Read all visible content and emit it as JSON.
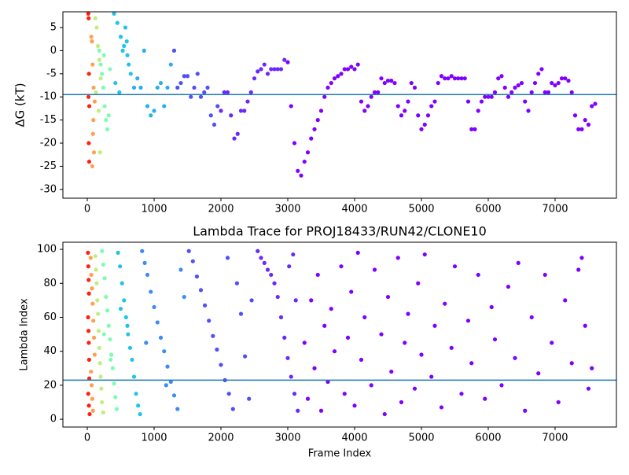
{
  "chart_data": [
    {
      "type": "scatter",
      "ylabel": "ΔG (kT)",
      "xlim": [
        -365,
        7918
      ],
      "ylim": [
        -31.9,
        8.4
      ],
      "xticks": [
        0,
        1000,
        2000,
        3000,
        4000,
        5000,
        6000,
        7000
      ],
      "yticks": [
        -30,
        -25,
        -20,
        -15,
        -10,
        -5,
        0,
        5
      ],
      "hline": -9.5,
      "hline_color": "#1f77b4",
      "series": [
        {
          "color": "#ff2010",
          "x": [
            15,
            20,
            25,
            18,
            22,
            28,
            30
          ],
          "values": [
            8,
            7,
            -5,
            -10,
            -20,
            -24,
            -12
          ]
        },
        {
          "color": "#ffa050",
          "x": [
            60,
            70,
            80,
            90,
            100,
            75,
            85,
            95,
            110
          ],
          "values": [
            3,
            2,
            -3,
            -15,
            -22,
            -25,
            -18,
            -8,
            -11
          ]
        },
        {
          "color": "#c0ee80",
          "x": [
            120,
            140,
            160,
            180,
            200,
            130,
            170,
            190
          ],
          "values": [
            7,
            5,
            1,
            -2,
            -6,
            -9,
            -13,
            -22
          ]
        },
        {
          "color": "#80fcb0",
          "x": [
            180,
            200,
            220,
            240,
            260,
            280,
            300,
            320,
            340,
            250
          ],
          "values": [
            0,
            -3,
            -5,
            -8,
            -12,
            -15,
            -17,
            -14,
            -4,
            -1
          ]
        },
        {
          "color": "#20c4e8",
          "x": [
            400,
            450,
            500,
            550,
            600,
            620,
            650,
            420,
            480,
            530,
            570,
            590
          ],
          "values": [
            8,
            6,
            3,
            1,
            -1,
            -3,
            -5,
            -7,
            -9,
            0,
            5,
            2
          ]
        },
        {
          "color": "#28b0ec",
          "x": [
            700,
            750,
            800,
            850,
            900,
            950,
            1000,
            1050,
            1100,
            1150,
            1200,
            1250
          ],
          "values": [
            -8,
            -6,
            -8,
            0,
            -12,
            -14,
            -13,
            -8,
            -7,
            -12,
            -8,
            -3
          ]
        },
        {
          "color": "#5050f8",
          "x": [
            1300,
            1350,
            1400,
            1450,
            1500,
            1550,
            1600,
            1650,
            1700,
            1750,
            1800,
            1850,
            1900,
            1950
          ],
          "values": [
            0,
            -8,
            -7,
            -5.5,
            -5.5,
            -10,
            -8,
            -5,
            -10,
            -9,
            -8,
            -14,
            -16,
            -12
          ]
        },
        {
          "color": "#6a28fc",
          "x": [
            2000,
            2050,
            2100,
            2150,
            2200,
            2250,
            2300,
            2350,
            2400,
            2450,
            2500,
            2550,
            2600,
            2650,
            2700,
            2750,
            2800,
            2850,
            2900,
            2950
          ],
          "values": [
            -13,
            -9,
            -9,
            -14,
            -19,
            -18,
            -13,
            -13,
            -11,
            -9,
            -6,
            -4.5,
            -4,
            -3,
            -5,
            -4,
            -4,
            -4,
            -4,
            -2
          ]
        },
        {
          "color": "#8000ff",
          "x": [
            3000,
            3050,
            3100,
            3150,
            3200,
            3250,
            3300,
            3350,
            3400,
            3450,
            3500,
            3550,
            3600,
            3650,
            3700,
            3750,
            3800,
            3850,
            3900,
            3950,
            4000,
            4050,
            4100,
            4150,
            4200,
            4250,
            4300,
            4350,
            4400,
            4450,
            4500,
            4550,
            4600,
            4650,
            4700,
            4750,
            4800,
            4850,
            4900,
            4950,
            5000,
            5050,
            5100,
            5150,
            5200,
            5250,
            5300,
            5350,
            5400,
            5450,
            5500,
            5550,
            5600,
            5650,
            5700,
            5750,
            5800,
            5850,
            5900,
            5950,
            6000,
            6050,
            6100,
            6150,
            6200,
            6250,
            6300,
            6350,
            6400,
            6450,
            6500,
            6550,
            6600,
            6650,
            6700,
            6750,
            6800,
            6850,
            6900,
            6950,
            7000,
            7050,
            7100,
            7150,
            7200,
            7250,
            7300,
            7350,
            7400,
            7450,
            7500,
            7550,
            7600
          ],
          "values": [
            -2.5,
            -12,
            -20,
            -26,
            -27,
            -24,
            -22,
            -19,
            -17,
            -15,
            -13,
            -10,
            -8,
            -7,
            -6,
            -5.5,
            -5,
            -4,
            -4,
            -3.5,
            -4,
            -3,
            -11,
            -13,
            -12,
            -10,
            -9,
            -9,
            -6,
            -7,
            -6.5,
            -6.5,
            -7,
            -12,
            -14,
            -13,
            -11,
            -7,
            -8,
            -14,
            -17,
            -16,
            -14,
            -12,
            -11,
            -7,
            -5.5,
            -6,
            -6,
            -5.5,
            -6,
            -6,
            -6,
            -6,
            -11,
            -17,
            -17,
            -13,
            -11,
            -10,
            -10,
            -10,
            -9,
            -6,
            -5.5,
            -8,
            -10,
            -9,
            -8,
            -7.5,
            -7,
            -11,
            -13,
            -9,
            -7,
            -5,
            -4,
            -9,
            -9,
            -7,
            -7.5,
            -7,
            -6,
            -6,
            -6.5,
            -9,
            -14,
            -17,
            -17,
            -15,
            -16,
            -12,
            -11.5
          ]
        }
      ]
    },
    {
      "type": "scatter",
      "title": "Lambda Trace for PROJ18433/RUN42/CLONE10",
      "xlabel": "Frame Index",
      "ylabel": "Lambda Index",
      "xlim": [
        -365,
        7918
      ],
      "ylim": [
        -4.6,
        104.2
      ],
      "xticks": [
        0,
        1000,
        2000,
        3000,
        4000,
        5000,
        6000,
        7000
      ],
      "yticks": [
        0,
        20,
        40,
        60,
        80,
        100
      ],
      "hline": 23,
      "hline_color": "#1f77b4",
      "series": [
        {
          "color": "#ff2010",
          "x": [
            10,
            15,
            20,
            25,
            12,
            18,
            22,
            28,
            30,
            14,
            24,
            35
          ],
          "values": [
            98,
            90,
            82,
            74,
            60,
            52,
            45,
            35,
            24,
            15,
            8,
            3
          ]
        },
        {
          "color": "#ffa050",
          "x": [
            50,
            60,
            70,
            80,
            90,
            100,
            110,
            55,
            65,
            75,
            85
          ],
          "values": [
            95,
            85,
            77,
            68,
            58,
            48,
            38,
            28,
            20,
            12,
            5
          ]
        },
        {
          "color": "#c0ee80",
          "x": [
            120,
            130,
            140,
            150,
            160,
            170,
            180,
            190,
            200,
            210,
            220,
            240
          ],
          "values": [
            96,
            88,
            80,
            70,
            62,
            52,
            42,
            33,
            25,
            18,
            10,
            4
          ]
        },
        {
          "color": "#80fcb0",
          "x": [
            220,
            240,
            260,
            280,
            300,
            320,
            340,
            360,
            380,
            400,
            420,
            440,
            250,
            350
          ],
          "values": [
            99,
            91,
            83,
            72,
            64,
            55,
            47,
            38,
            30,
            21,
            13,
            6,
            50,
            35
          ]
        },
        {
          "color": "#20c4e8",
          "x": [
            460,
            490,
            520,
            550,
            580,
            610,
            640,
            670,
            700,
            730,
            760,
            790,
            500,
            600
          ],
          "values": [
            98,
            90,
            80,
            70,
            60,
            50,
            42,
            35,
            25,
            15,
            8,
            3,
            65,
            55
          ]
        },
        {
          "color": "#3c8cf6",
          "x": [
            820,
            860,
            900,
            950,
            1000,
            1050,
            1100,
            1150,
            1200,
            1250,
            1300,
            1350,
            1400,
            1450,
            880,
            1180
          ],
          "values": [
            99,
            92,
            85,
            75,
            66,
            57,
            48,
            40,
            31,
            22,
            14,
            6,
            88,
            72,
            45,
            20
          ]
        },
        {
          "color": "#5050f8",
          "x": [
            1520,
            1580,
            1640,
            1700,
            1760,
            1820,
            1880,
            1940,
            2000,
            2060,
            2120,
            2180,
            2240,
            2300,
            2360,
            2420,
            2100,
            2460
          ],
          "values": [
            99,
            93,
            84,
            76,
            67,
            58,
            49,
            41,
            32,
            23,
            15,
            6,
            80,
            62,
            37,
            12,
            95,
            70
          ]
        },
        {
          "color": "#6a28fc",
          "x": [
            2550,
            2600,
            2650,
            2700,
            2750,
            2800,
            2850,
            2900,
            2950,
            3000,
            3050,
            3100,
            3150,
            3020,
            3080,
            3120
          ],
          "values": [
            99,
            95,
            92,
            88,
            85,
            80,
            72,
            60,
            48,
            36,
            25,
            15,
            5,
            90,
            97,
            70
          ]
        },
        {
          "color": "#8000ff",
          "x": [
            3250,
            3300,
            3350,
            3400,
            3450,
            3500,
            3550,
            3600,
            3650,
            3700,
            3800,
            3850,
            3900,
            3950,
            4000,
            4050,
            4100,
            4150,
            4250,
            4300,
            4400,
            4450,
            4500,
            4550,
            4650,
            4700,
            4750,
            4800,
            4900,
            4950,
            5000,
            5050,
            5150,
            5200,
            5300,
            5350,
            5450,
            5500,
            5600,
            5700,
            5750,
            5850,
            5950,
            6050,
            6100,
            6200,
            6300,
            6400,
            6450,
            6550,
            6650,
            6750,
            6850,
            6950,
            7050,
            7150,
            7250,
            7350,
            7400,
            7450,
            7500,
            7550
          ],
          "values": [
            45,
            12,
            70,
            30,
            85,
            5,
            55,
            22,
            65,
            40,
            90,
            15,
            48,
            75,
            8,
            98,
            35,
            60,
            20,
            88,
            50,
            3,
            72,
            28,
            95,
            10,
            45,
            62,
            18,
            80,
            38,
            97,
            25,
            55,
            7,
            68,
            42,
            90,
            15,
            58,
            33,
            85,
            12,
            66,
            47,
            20,
            78,
            36,
            92,
            5,
            60,
            27,
            85,
            45,
            10,
            70,
            33,
            88,
            95,
            55,
            18,
            30
          ]
        }
      ]
    }
  ]
}
